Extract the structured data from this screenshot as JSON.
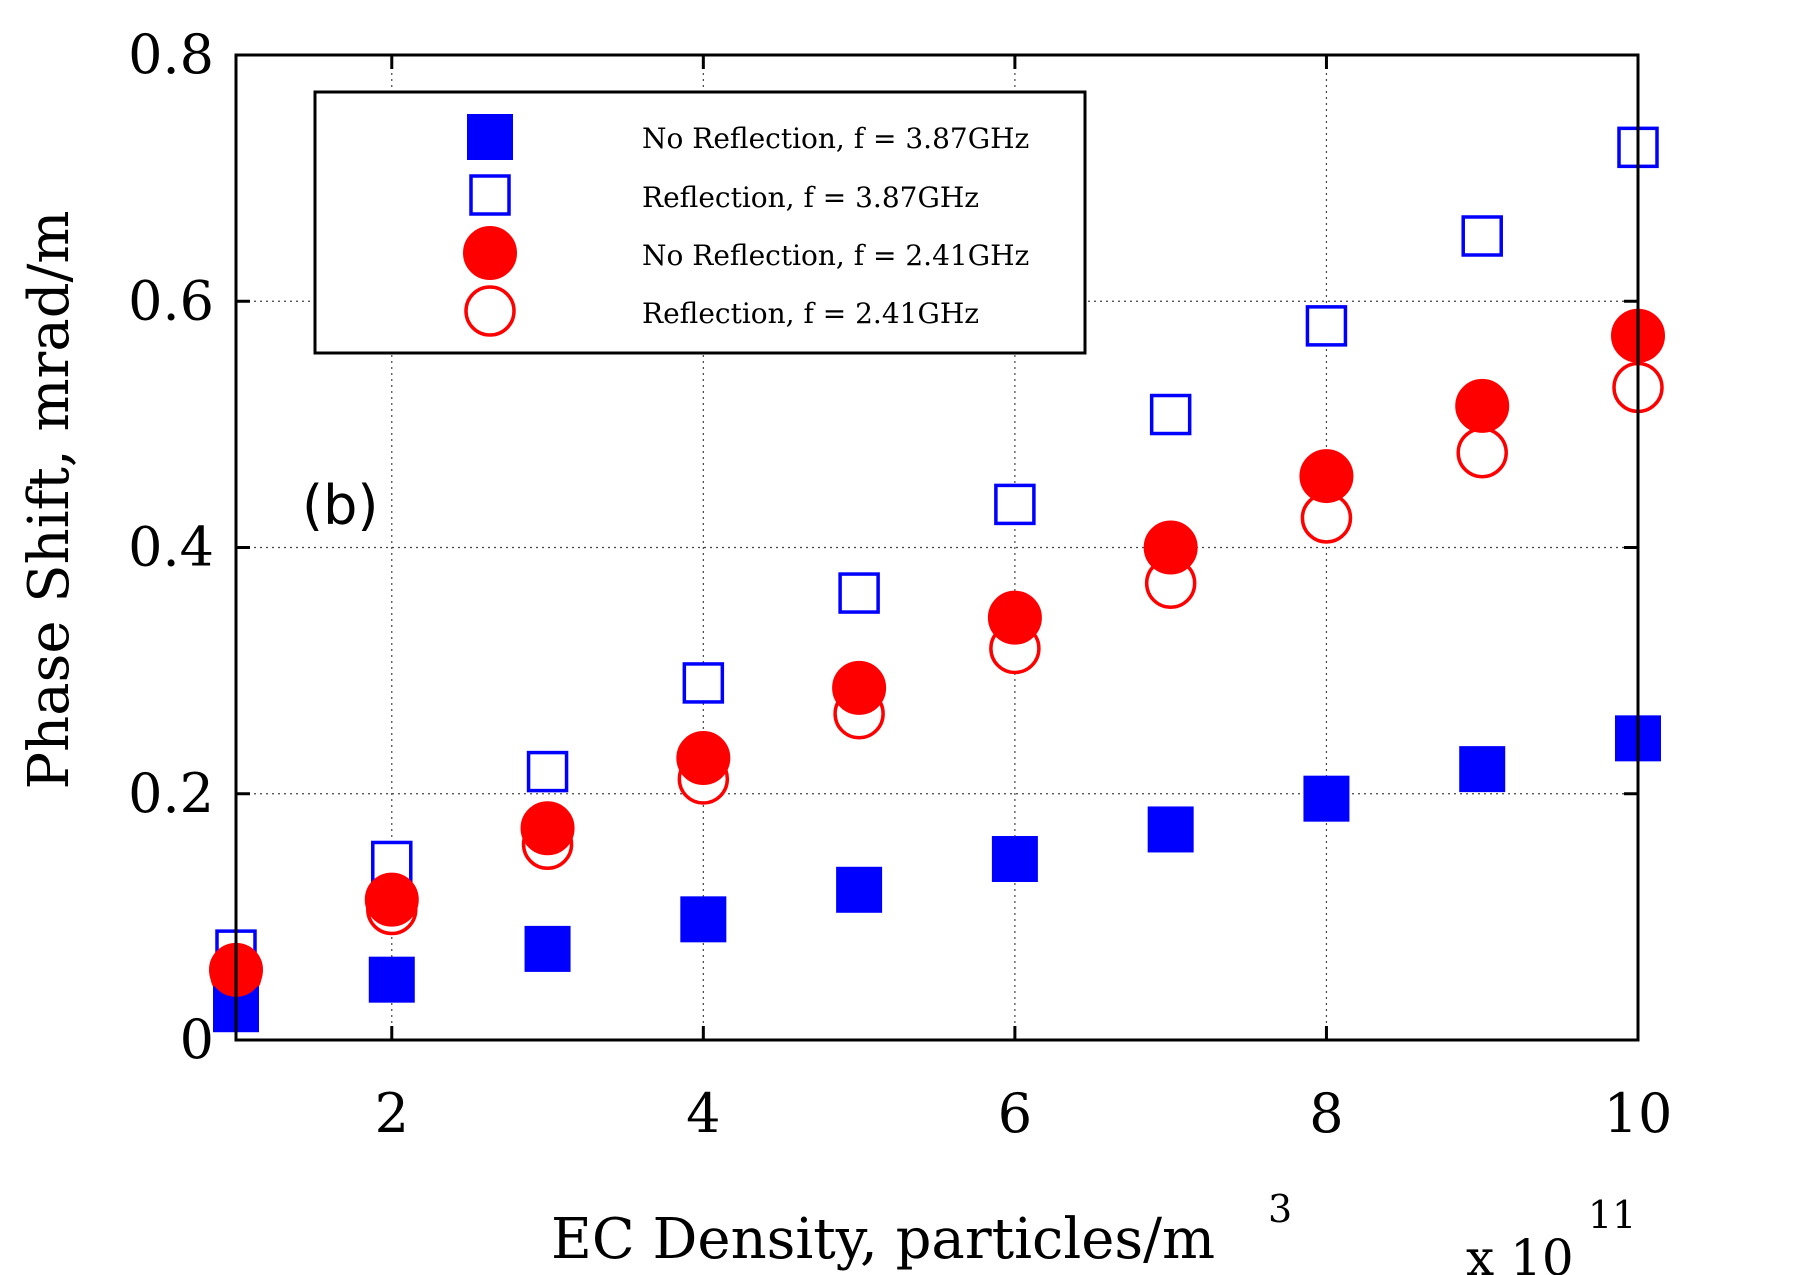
{
  "chart_data": {
    "type": "scatter",
    "title": "",
    "annotation": "(b)",
    "xlabel": "EC Density, particles/m",
    "xlabel_superscript": "3",
    "ylabel": "Phase Shift, mrad/m",
    "x_exponent_prefix": "x 10",
    "x_exponent": "11",
    "xlim": [
      1,
      10
    ],
    "ylim": [
      0,
      0.8
    ],
    "xticks": [
      2,
      4,
      6,
      8,
      10
    ],
    "xtick_labels": [
      "2",
      "4",
      "6",
      "8",
      "10"
    ],
    "yticks": [
      0,
      0.2,
      0.4,
      0.6,
      0.8
    ],
    "ytick_labels": [
      "0",
      "0.2",
      "0.4",
      "0.6",
      "0.8"
    ],
    "grid": true,
    "legend_position": "top-left",
    "x": [
      1,
      2,
      3,
      4,
      5,
      6,
      7,
      8,
      9,
      10
    ],
    "series": [
      {
        "name": "No Reflection, f = 3.87GHz",
        "marker": "square-filled",
        "color": "#0000ff",
        "values": [
          0.025,
          0.049,
          0.074,
          0.098,
          0.122,
          0.147,
          0.171,
          0.196,
          0.22,
          0.245
        ]
      },
      {
        "name": "Reflection, f = 3.87GHz",
        "marker": "square-open",
        "color": "#0000ff",
        "values": [
          0.073,
          0.145,
          0.218,
          0.29,
          0.363,
          0.435,
          0.508,
          0.58,
          0.653,
          0.725
        ]
      },
      {
        "name": "No Reflection, f = 2.41GHz",
        "marker": "circle-filled",
        "color": "#ff0000",
        "values": [
          0.057,
          0.114,
          0.172,
          0.229,
          0.286,
          0.343,
          0.4,
          0.458,
          0.515,
          0.572
        ]
      },
      {
        "name": "Reflection, f = 2.41GHz",
        "marker": "circle-open",
        "color": "#ff0000",
        "values": [
          0.053,
          0.106,
          0.159,
          0.212,
          0.265,
          0.318,
          0.371,
          0.424,
          0.477,
          0.53
        ]
      }
    ]
  }
}
